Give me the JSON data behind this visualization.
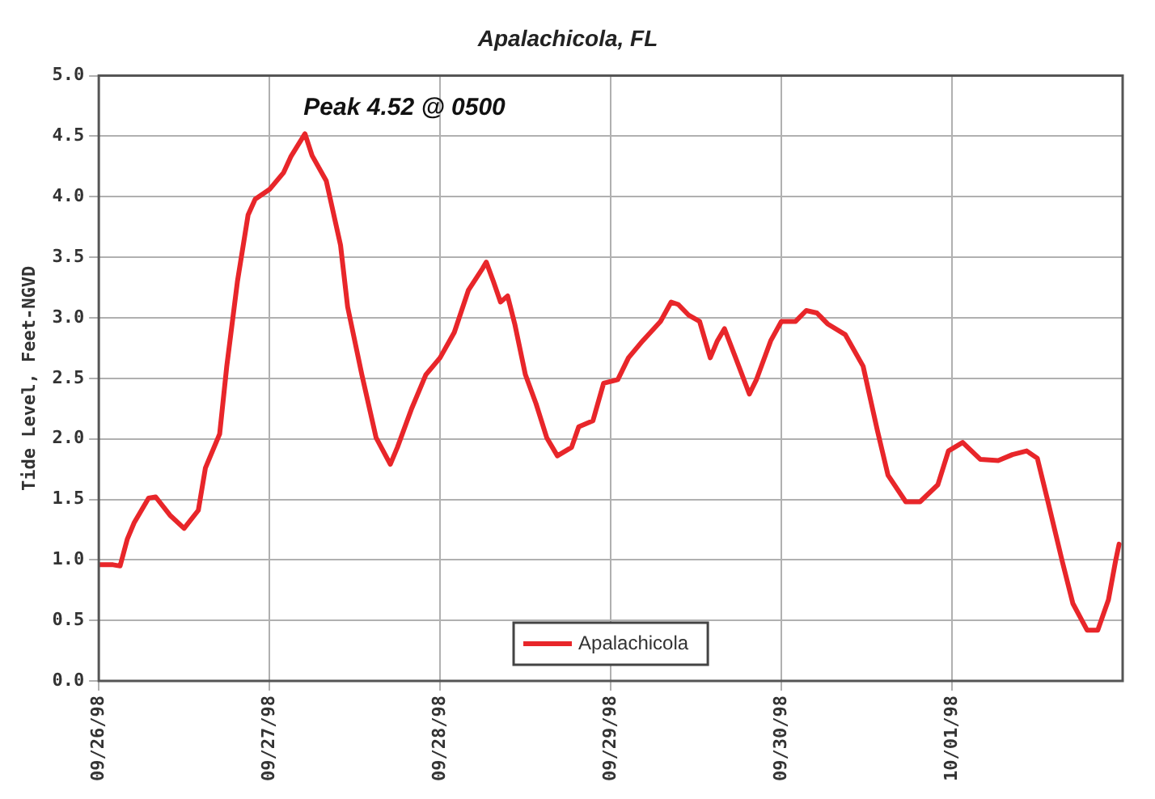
{
  "chart_data": {
    "type": "line",
    "title": "Apalachicola, FL",
    "ylabel": "Tide Level, Feet-NGVD",
    "annotations": [
      "Peak 4.52 @ 0500"
    ],
    "x": [
      "1998-09-26T00:00",
      "1998-09-26T02:00",
      "1998-09-26T03:00",
      "1998-09-26T04:00",
      "1998-09-26T05:00",
      "1998-09-26T07:00",
      "1998-09-26T08:00",
      "1998-09-26T10:00",
      "1998-09-26T12:00",
      "1998-09-26T14:00",
      "1998-09-26T15:00",
      "1998-09-26T17:00",
      "1998-09-26T18:00",
      "1998-09-26T19:30",
      "1998-09-26T21:00",
      "1998-09-26T22:00",
      "1998-09-27T00:00",
      "1998-09-27T02:00",
      "1998-09-27T03:00",
      "1998-09-27T05:00",
      "1998-09-27T06:00",
      "1998-09-27T08:00",
      "1998-09-27T10:00",
      "1998-09-27T11:00",
      "1998-09-27T13:00",
      "1998-09-27T15:00",
      "1998-09-27T17:00",
      "1998-09-27T18:00",
      "1998-09-27T20:00",
      "1998-09-27T22:00",
      "1998-09-28T00:00",
      "1998-09-28T02:00",
      "1998-09-28T04:00",
      "1998-09-28T06:00",
      "1998-09-28T06:30",
      "1998-09-28T07:30",
      "1998-09-28T08:30",
      "1998-09-28T09:30",
      "1998-09-28T10:30",
      "1998-09-28T12:00",
      "1998-09-28T13:30",
      "1998-09-28T15:00",
      "1998-09-28T16:30",
      "1998-09-28T18:30",
      "1998-09-28T19:30",
      "1998-09-28T21:30",
      "1998-09-28T23:00",
      "1998-09-29T01:00",
      "1998-09-29T02:30",
      "1998-09-29T04:30",
      "1998-09-29T07:00",
      "1998-09-29T08:30",
      "1998-09-29T09:30",
      "1998-09-29T11:00",
      "1998-09-29T12:30",
      "1998-09-29T14:00",
      "1998-09-29T15:00",
      "1998-09-29T16:00",
      "1998-09-29T17:30",
      "1998-09-29T19:30",
      "1998-09-29T20:30",
      "1998-09-29T22:30",
      "1998-09-30T00:00",
      "1998-09-30T02:00",
      "1998-09-30T03:30",
      "1998-09-30T05:00",
      "1998-09-30T06:30",
      "1998-09-30T09:00",
      "1998-09-30T11:30",
      "1998-09-30T13:30",
      "1998-09-30T15:00",
      "1998-09-30T17:30",
      "1998-09-30T19:30",
      "1998-09-30T22:00",
      "1998-09-30T23:30",
      "1998-10-01T01:30",
      "1998-10-01T04:00",
      "1998-10-01T06:30",
      "1998-10-01T08:30",
      "1998-10-01T10:30",
      "1998-10-01T12:00",
      "1998-10-01T13:30",
      "1998-10-01T15:30",
      "1998-10-01T17:00",
      "1998-10-01T19:00",
      "1998-10-01T20:30",
      "1998-10-01T22:00",
      "1998-10-01T23:00",
      "1998-10-01T23:30"
    ],
    "series": [
      {
        "name": "Apalachicola",
        "color": "#e8262a",
        "values": [
          0.96,
          0.96,
          0.95,
          1.17,
          1.31,
          1.51,
          1.52,
          1.37,
          1.26,
          1.41,
          1.76,
          2.04,
          2.6,
          3.3,
          3.85,
          3.98,
          4.06,
          4.2,
          4.33,
          4.52,
          4.34,
          4.13,
          3.6,
          3.09,
          2.53,
          2.01,
          1.79,
          1.93,
          2.25,
          2.53,
          2.67,
          2.88,
          3.23,
          3.41,
          3.46,
          3.3,
          3.13,
          3.18,
          2.95,
          2.53,
          2.29,
          2.01,
          1.86,
          1.93,
          2.1,
          2.15,
          2.46,
          2.49,
          2.67,
          2.81,
          2.97,
          3.13,
          3.11,
          3.02,
          2.97,
          2.67,
          2.81,
          2.91,
          2.68,
          2.37,
          2.49,
          2.81,
          2.97,
          2.97,
          3.06,
          3.04,
          2.95,
          2.86,
          2.6,
          2.07,
          1.7,
          1.48,
          1.48,
          1.62,
          1.9,
          1.97,
          1.83,
          1.82,
          1.87,
          1.9,
          1.84,
          1.48,
          0.99,
          0.64,
          0.42,
          0.42,
          0.67,
          0.99,
          1.13
        ]
      }
    ],
    "xlim": [
      "1998-09-26",
      "1998-10-02"
    ],
    "xticks": [
      {
        "value": "1998-09-26",
        "label": "09/26/98"
      },
      {
        "value": "1998-09-27",
        "label": "09/27/98"
      },
      {
        "value": "1998-09-28",
        "label": "09/28/98"
      },
      {
        "value": "1998-09-29",
        "label": "09/29/98"
      },
      {
        "value": "1998-09-30",
        "label": "09/30/98"
      },
      {
        "value": "1998-10-01",
        "label": "10/01/98"
      }
    ],
    "ylim": [
      0,
      5
    ],
    "yticks": [
      {
        "value": 0,
        "label": "0.0"
      },
      {
        "value": 0.5,
        "label": "0.5"
      },
      {
        "value": 1,
        "label": "1.0"
      },
      {
        "value": 1.5,
        "label": "1.5"
      },
      {
        "value": 2,
        "label": "2.0"
      },
      {
        "value": 2.5,
        "label": "2.5"
      },
      {
        "value": 3,
        "label": "3.0"
      },
      {
        "value": 3.5,
        "label": "3.5"
      },
      {
        "value": 4,
        "label": "4.0"
      },
      {
        "value": 4.5,
        "label": "4.5"
      },
      {
        "value": 5,
        "label": "5.0"
      }
    ],
    "grid": true,
    "legend": "bottom",
    "marker": "none",
    "line_style": "solid"
  }
}
